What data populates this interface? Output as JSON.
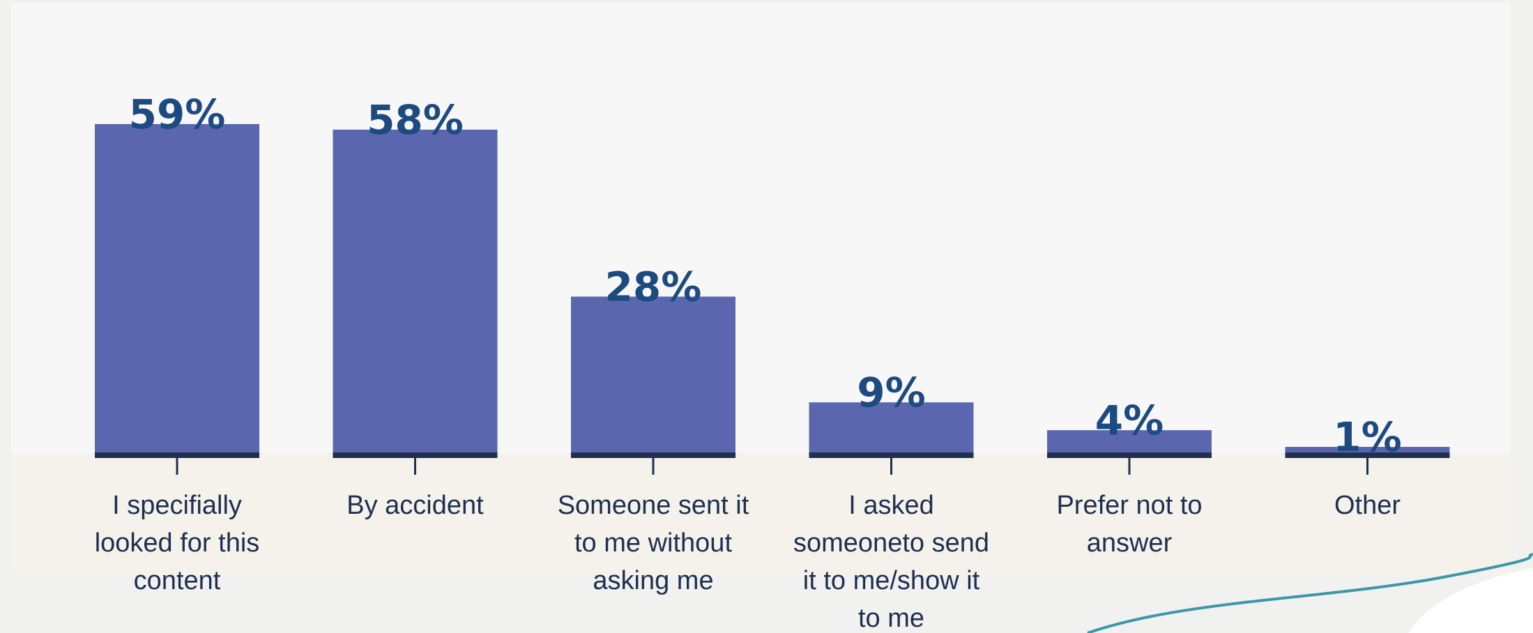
{
  "chart_data": {
    "type": "bar",
    "categories": [
      "I specifially looked for this content",
      "By accident",
      "Someone sent it to me without asking me",
      "I asked someoneto send it to me/show it to me",
      "Prefer not to answer",
      "Other"
    ],
    "values": [
      59,
      58,
      28,
      9,
      4,
      1
    ],
    "value_labels": [
      "59%",
      "58%",
      "28%",
      "9%",
      "4%",
      "1%"
    ],
    "color": "#5a67ae",
    "ylim": [
      0,
      60
    ]
  }
}
